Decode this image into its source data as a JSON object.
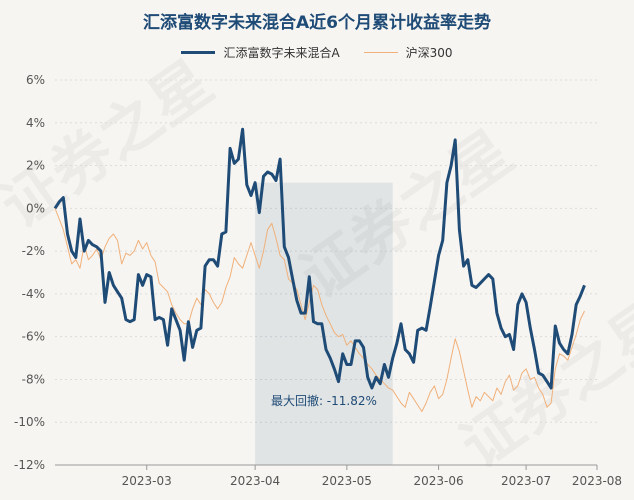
{
  "chart_data": {
    "type": "line",
    "title": "汇添富数字未来混合A近6个月累计收益率走势",
    "ylim": [
      -12,
      6
    ],
    "yticks": [
      "6%",
      "4%",
      "2%",
      "0%",
      "-2%",
      "-4%",
      "-6%",
      "-8%",
      "-10%",
      "-12%"
    ],
    "yvals": [
      6,
      4,
      2,
      0,
      -2,
      -4,
      -6,
      -8,
      -10,
      -12
    ],
    "xlim": [
      0,
      130
    ],
    "xticks": [
      {
        "label": "2023-03",
        "x": 22
      },
      {
        "label": "2023-04",
        "x": 48
      },
      {
        "label": "2023-05",
        "x": 70
      },
      {
        "label": "2023-06",
        "x": 92
      },
      {
        "label": "2023-07",
        "x": 113
      },
      {
        "label": "2023-08",
        "x": 130
      }
    ],
    "grid": "horizontal",
    "legend_position": "top-center",
    "max_drawdown": {
      "label": "最大回撤: -11.82%",
      "x_start": 48,
      "x_end": 81
    },
    "series": [
      {
        "name": "汇添富数字未来混合A",
        "color": "#1f4b77",
        "values": [
          0,
          0.3,
          0.5,
          -1.2,
          -2,
          -2.3,
          -0.5,
          -2,
          -1.5,
          -1.7,
          -1.8,
          -2,
          -4.4,
          -3,
          -3.6,
          -3.9,
          -4.2,
          -5.2,
          -5.3,
          -5.2,
          -3.1,
          -3.6,
          -3.1,
          -3.2,
          -5.2,
          -5.1,
          -5.2,
          -6.4,
          -4.7,
          -5.2,
          -5.7,
          -7.1,
          -5.3,
          -6.5,
          -5.7,
          -5.6,
          -2.7,
          -2.4,
          -2.4,
          -2.7,
          -1.2,
          -1.1,
          2.8,
          2.1,
          2.3,
          3.7,
          1.1,
          0.6,
          1.2,
          -0.2,
          1.5,
          1.7,
          1.6,
          1.3,
          2.3,
          -1.8,
          -2.3,
          -3.3,
          -4.3,
          -4.9,
          -4.9,
          -3.2,
          -5.3,
          -5.4,
          -5.4,
          -6.6,
          -7,
          -7.5,
          -8.1,
          -6.8,
          -7.3,
          -7.3,
          -6.2,
          -6.2,
          -6.5,
          -7.9,
          -8.4,
          -7.9,
          -8.2,
          -7.3,
          -7.9,
          -7,
          -6.3,
          -5.4,
          -6.6,
          -6.8,
          -7.2,
          -5.7,
          -5.6,
          -5.7,
          -4.6,
          -3.4,
          -2.2,
          -1.5,
          1.2,
          2,
          3.2,
          -1,
          -2.7,
          -2.4,
          -3.6,
          -3.7,
          -3.5,
          -3.3,
          -3.1,
          -3.3,
          -4.9,
          -5.6,
          -6,
          -5.9,
          -6.6,
          -4.5,
          -4,
          -4.4,
          -5.6,
          -6.6,
          -7.7,
          -7.8,
          -8.1,
          -8.4,
          -5.5,
          -6.3,
          -6.6,
          -6.8,
          -5.9,
          -4.5,
          -4.1,
          -3.6
        ]
      },
      {
        "name": "沪深300",
        "color": "#f0b07a",
        "values": [
          0,
          -0.5,
          -1,
          -1.8,
          -2.6,
          -2.4,
          -2.8,
          -1.7,
          -2.4,
          -2.2,
          -1.9,
          -2.4,
          -1.8,
          -1.4,
          -1.2,
          -1.5,
          -2.6,
          -2.1,
          -2.2,
          -2,
          -1.5,
          -1.9,
          -1.6,
          -2.2,
          -2.5,
          -3.5,
          -3.7,
          -3.9,
          -4.5,
          -4.9,
          -5.2,
          -5.4,
          -5.4,
          -4.7,
          -4.2,
          -4.5,
          -3.8,
          -4,
          -4.4,
          -4.7,
          -4.4,
          -3.7,
          -3.2,
          -2.3,
          -2.6,
          -2.8,
          -2.2,
          -1.6,
          -2.2,
          -2.8,
          -2,
          -1,
          -0.7,
          -1.4,
          -2.2,
          -2.4,
          -3.3,
          -3.5,
          -3.8,
          -4.5,
          -5.2,
          -4.4,
          -3.6,
          -3.8,
          -4.5,
          -5,
          -5.4,
          -5.8,
          -6,
          -5.9,
          -6.4,
          -6.2,
          -6.5,
          -6.8,
          -7,
          -7.3,
          -7.5,
          -7.8,
          -8,
          -8.2,
          -8.4,
          -8.5,
          -8.8,
          -9.1,
          -9.3,
          -8.6,
          -8.9,
          -9.2,
          -9.5,
          -9.1,
          -8.6,
          -8.3,
          -8.9,
          -8.7,
          -8,
          -7,
          -6.1,
          -6.7,
          -7.6,
          -8.5,
          -9.3,
          -8.8,
          -9,
          -8.6,
          -8.8,
          -9,
          -8.4,
          -8.7,
          -8.1,
          -7.8,
          -8.5,
          -8.3,
          -7.7,
          -7.5,
          -8,
          -7.9,
          -8.4,
          -8.7,
          -9.3,
          -9.1,
          -7.5,
          -6.8,
          -6.9,
          -7.1,
          -6.5,
          -5.9,
          -5.2,
          -4.8
        ]
      }
    ]
  },
  "watermark": "证券之星"
}
